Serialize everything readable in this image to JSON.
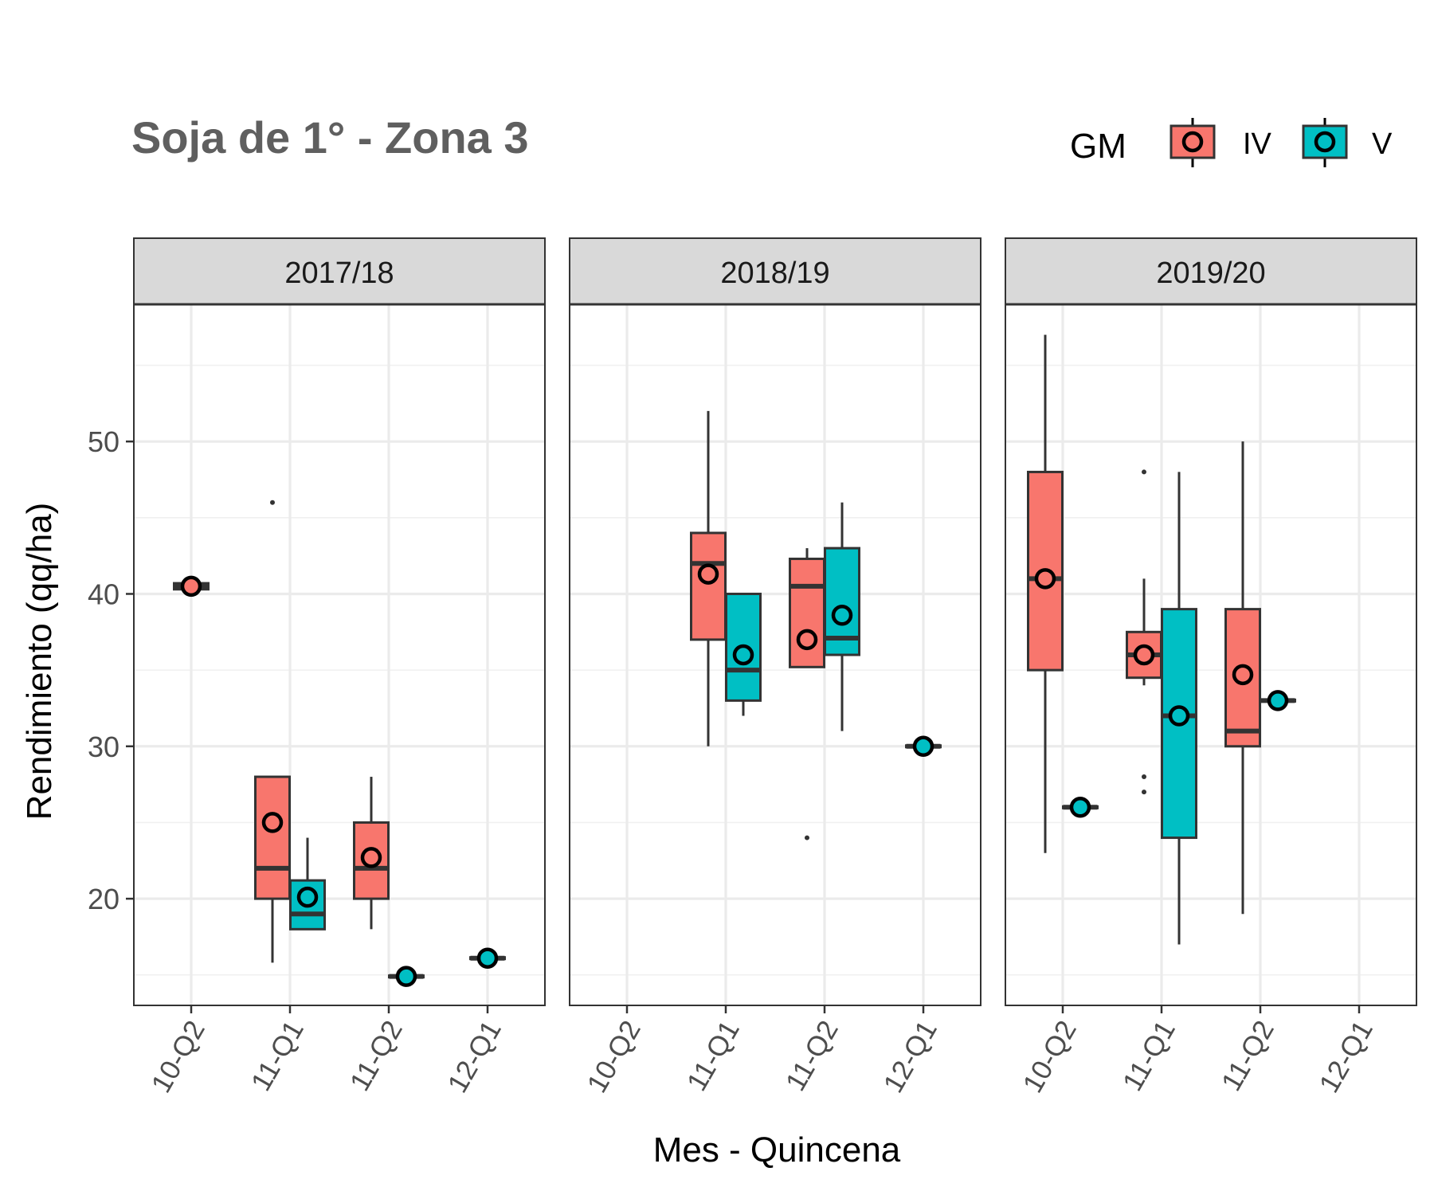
{
  "chart_data": {
    "type": "box",
    "title": "Soja de 1° - Zona 3",
    "xlabel": "Mes - Quincena",
    "ylabel": "Rendimiento (qq/ha)",
    "categories": [
      "10-Q2",
      "11-Q1",
      "11-Q2",
      "12-Q1"
    ],
    "y_ticks": [
      "20",
      "30",
      "40",
      "50"
    ],
    "ylim": [
      13,
      59
    ],
    "grid": true,
    "legend": {
      "title": "GM",
      "position": "top-right",
      "items": [
        {
          "label": "IV",
          "color": "#F8766D"
        },
        {
          "label": "V",
          "color": "#00BFC4"
        }
      ]
    },
    "panels": [
      {
        "label": "2017/18",
        "boxes": [
          {
            "group": "IV",
            "category": "10-Q2",
            "pos": 0,
            "whisker_low": 40.3,
            "q1": 40.3,
            "median": 40.5,
            "q3": 40.7,
            "whisker_high": 40.7,
            "mean": 40.5,
            "outliers": []
          },
          {
            "group": "IV",
            "category": "11-Q1",
            "pos": -1,
            "whisker_low": 15.8,
            "q1": 20,
            "median": 22,
            "q3": 28,
            "whisker_high": 28,
            "mean": 25,
            "outliers": [
              46
            ]
          },
          {
            "group": "V",
            "category": "11-Q1",
            "pos": 1,
            "whisker_low": 18,
            "q1": 18,
            "median": 19,
            "q3": 21.2,
            "whisker_high": 24,
            "mean": 20.1,
            "outliers": []
          },
          {
            "group": "IV",
            "category": "11-Q2",
            "pos": -1,
            "whisker_low": 18,
            "q1": 20,
            "median": 22,
            "q3": 25,
            "whisker_high": 28,
            "mean": 22.7,
            "outliers": []
          },
          {
            "group": "V",
            "category": "11-Q2",
            "pos": 1,
            "whisker_low": 14.9,
            "q1": 14.9,
            "median": 14.9,
            "q3": 14.9,
            "whisker_high": 14.9,
            "mean": 14.9,
            "outliers": []
          },
          {
            "group": "V",
            "category": "12-Q1",
            "pos": 0,
            "whisker_low": 16.1,
            "q1": 16.1,
            "median": 16.1,
            "q3": 16.1,
            "whisker_high": 16.1,
            "mean": 16.1,
            "outliers": []
          }
        ]
      },
      {
        "label": "2018/19",
        "boxes": [
          {
            "group": "IV",
            "category": "11-Q1",
            "pos": -1,
            "whisker_low": 30,
            "q1": 37,
            "median": 42,
            "q3": 44,
            "whisker_high": 52,
            "mean": 41.3,
            "outliers": []
          },
          {
            "group": "V",
            "category": "11-Q1",
            "pos": 1,
            "whisker_low": 32,
            "q1": 33,
            "median": 35,
            "q3": 40,
            "whisker_high": 40,
            "mean": 36,
            "outliers": []
          },
          {
            "group": "IV",
            "category": "11-Q2",
            "pos": -1,
            "whisker_low": 35.2,
            "q1": 35.2,
            "median": 40.5,
            "q3": 42.3,
            "whisker_high": 43,
            "mean": 37,
            "outliers": [
              24
            ]
          },
          {
            "group": "V",
            "category": "11-Q2",
            "pos": 1,
            "whisker_low": 31,
            "q1": 36,
            "median": 37.1,
            "q3": 43,
            "whisker_high": 46,
            "mean": 38.6,
            "outliers": []
          },
          {
            "group": "V",
            "category": "12-Q1",
            "pos": 0,
            "whisker_low": 30,
            "q1": 30,
            "median": 30,
            "q3": 30,
            "whisker_high": 30,
            "mean": 30,
            "outliers": []
          }
        ]
      },
      {
        "label": "2019/20",
        "boxes": [
          {
            "group": "IV",
            "category": "10-Q2",
            "pos": -1,
            "whisker_low": 23,
            "q1": 35,
            "median": 41,
            "q3": 48,
            "whisker_high": 57,
            "mean": 41,
            "outliers": []
          },
          {
            "group": "V",
            "category": "10-Q2",
            "pos": 1,
            "whisker_low": 26,
            "q1": 26,
            "median": 26,
            "q3": 26,
            "whisker_high": 26,
            "mean": 26,
            "outliers": []
          },
          {
            "group": "IV",
            "category": "11-Q1",
            "pos": -1,
            "whisker_low": 34,
            "q1": 34.5,
            "median": 36,
            "q3": 37.5,
            "whisker_high": 41,
            "mean": 36,
            "outliers": [
              48,
              28,
              27
            ]
          },
          {
            "group": "V",
            "category": "11-Q1",
            "pos": 1,
            "whisker_low": 17,
            "q1": 24,
            "median": 32,
            "q3": 39,
            "whisker_high": 48,
            "mean": 32,
            "outliers": []
          },
          {
            "group": "IV",
            "category": "11-Q2",
            "pos": -1,
            "whisker_low": 19,
            "q1": 30,
            "median": 31,
            "q3": 39,
            "whisker_high": 50,
            "mean": 34.7,
            "outliers": []
          },
          {
            "group": "V",
            "category": "11-Q2",
            "pos": 1,
            "whisker_low": 33,
            "q1": 33,
            "median": 33,
            "q3": 33,
            "whisker_high": 33,
            "mean": 33,
            "outliers": []
          }
        ]
      }
    ]
  }
}
